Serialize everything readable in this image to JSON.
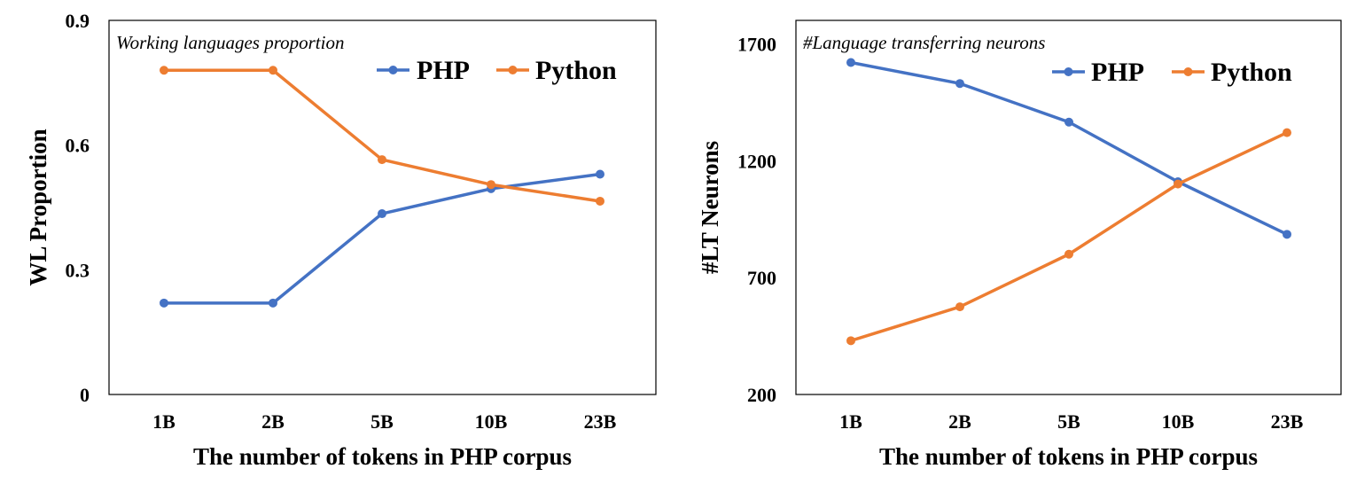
{
  "chart_data": [
    {
      "type": "line",
      "title": "Working languages proportion",
      "xlabel": "The number of tokens in PHP corpus",
      "ylabel": "WL Proportion",
      "categories": [
        "1B",
        "2B",
        "5B",
        "10B",
        "23B"
      ],
      "yticks": [
        "0",
        "0.3",
        "0.6",
        "0.9"
      ],
      "ylim": [
        0,
        0.9
      ],
      "legend_position": "top-right",
      "grid": false,
      "series": [
        {
          "name": "PHP",
          "color": "#4472C4",
          "values": [
            0.22,
            0.22,
            0.435,
            0.495,
            0.53
          ]
        },
        {
          "name": "Python",
          "color": "#ED7D31",
          "values": [
            0.78,
            0.78,
            0.565,
            0.505,
            0.465
          ]
        }
      ]
    },
    {
      "type": "line",
      "title": "#Language transferring neurons",
      "xlabel": "The number of tokens in PHP corpus",
      "ylabel": "#LT Neurons",
      "categories": [
        "1B",
        "2B",
        "5B",
        "10B",
        "23B"
      ],
      "yticks": [
        "200",
        "700",
        "1200",
        "1700"
      ],
      "ylim": [
        200,
        1800
      ],
      "legend_position": "top-right",
      "grid": false,
      "series": [
        {
          "name": "PHP",
          "color": "#4472C4",
          "values": [
            1620,
            1530,
            1365,
            1110,
            885
          ]
        },
        {
          "name": "Python",
          "color": "#ED7D31",
          "values": [
            430,
            575,
            800,
            1100,
            1320
          ]
        }
      ]
    }
  ]
}
